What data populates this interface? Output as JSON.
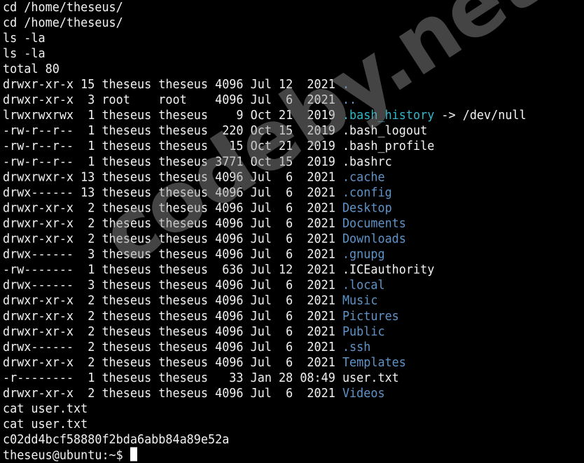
{
  "colors": {
    "background": "#000000",
    "text": "#f2f2f2",
    "directory": "#5f93c8",
    "symlink": "#2fb6c8"
  },
  "watermark": "codeby.net",
  "terminal": {
    "lines": [
      [
        {
          "t": "cd /home/theseus/"
        }
      ],
      [
        {
          "t": "cd /home/theseus/"
        }
      ],
      [
        {
          "t": "ls -la"
        }
      ],
      [
        {
          "t": "ls -la"
        }
      ],
      [
        {
          "t": "total 80"
        }
      ],
      [
        {
          "t": "drwxr-xr-x 15 theseus theseus 4096 Jul 12  2021 "
        },
        {
          "t": ".",
          "c": "dir"
        }
      ],
      [
        {
          "t": "drwxr-xr-x  3 root    root    4096 Jul  6  2021 "
        },
        {
          "t": "..",
          "c": "dir"
        }
      ],
      [
        {
          "t": "lrwxrwxrwx  1 theseus theseus    9 Oct 21  2019 "
        },
        {
          "t": ".bash_history",
          "c": "link"
        },
        {
          "t": " -> /dev/null"
        }
      ],
      [
        {
          "t": "-rw-r--r--  1 theseus theseus  220 Oct 15  2019 .bash_logout"
        }
      ],
      [
        {
          "t": "-rw-r--r--  1 theseus theseus   15 Oct 21  2019 .bash_profile"
        }
      ],
      [
        {
          "t": "-rw-r--r--  1 theseus theseus 3771 Oct 15  2019 .bashrc"
        }
      ],
      [
        {
          "t": "drwxrwxr-x 13 theseus theseus 4096 Jul  6  2021 "
        },
        {
          "t": ".cache",
          "c": "dir"
        }
      ],
      [
        {
          "t": "drwx------ 13 theseus theseus 4096 Jul  6  2021 "
        },
        {
          "t": ".config",
          "c": "dir"
        }
      ],
      [
        {
          "t": "drwxr-xr-x  2 theseus theseus 4096 Jul  6  2021 "
        },
        {
          "t": "Desktop",
          "c": "dir"
        }
      ],
      [
        {
          "t": "drwxr-xr-x  2 theseus theseus 4096 Jul  6  2021 "
        },
        {
          "t": "Documents",
          "c": "dir"
        }
      ],
      [
        {
          "t": "drwxr-xr-x  2 theseus theseus 4096 Jul  6  2021 "
        },
        {
          "t": "Downloads",
          "c": "dir"
        }
      ],
      [
        {
          "t": "drwx------  3 theseus theseus 4096 Jul  6  2021 "
        },
        {
          "t": ".gnupg",
          "c": "dir"
        }
      ],
      [
        {
          "t": "-rw-------  1 theseus theseus  636 Jul 12  2021 .ICEauthority"
        }
      ],
      [
        {
          "t": "drwx------  3 theseus theseus 4096 Jul  6  2021 "
        },
        {
          "t": ".local",
          "c": "dir"
        }
      ],
      [
        {
          "t": "drwxr-xr-x  2 theseus theseus 4096 Jul  6  2021 "
        },
        {
          "t": "Music",
          "c": "dir"
        }
      ],
      [
        {
          "t": "drwxr-xr-x  2 theseus theseus 4096 Jul  6  2021 "
        },
        {
          "t": "Pictures",
          "c": "dir"
        }
      ],
      [
        {
          "t": "drwxr-xr-x  2 theseus theseus 4096 Jul  6  2021 "
        },
        {
          "t": "Public",
          "c": "dir"
        }
      ],
      [
        {
          "t": "drwx------  2 theseus theseus 4096 Jul  6  2021 "
        },
        {
          "t": ".ssh",
          "c": "dir"
        }
      ],
      [
        {
          "t": "drwxr-xr-x  2 theseus theseus 4096 Jul  6  2021 "
        },
        {
          "t": "Templates",
          "c": "dir"
        }
      ],
      [
        {
          "t": "-r--------  1 theseus theseus   33 Jan 28 08:49 user.txt"
        }
      ],
      [
        {
          "t": "drwxr-xr-x  2 theseus theseus 4096 Jul  6  2021 "
        },
        {
          "t": "Videos",
          "c": "dir"
        }
      ],
      [
        {
          "t": "cat user.txt"
        }
      ],
      [
        {
          "t": "cat user.txt"
        }
      ],
      [
        {
          "t": "c02dd4bcf58880f2bda6abb84a89e52a"
        }
      ]
    ],
    "prompt": "theseus@ubuntu:~$ "
  }
}
